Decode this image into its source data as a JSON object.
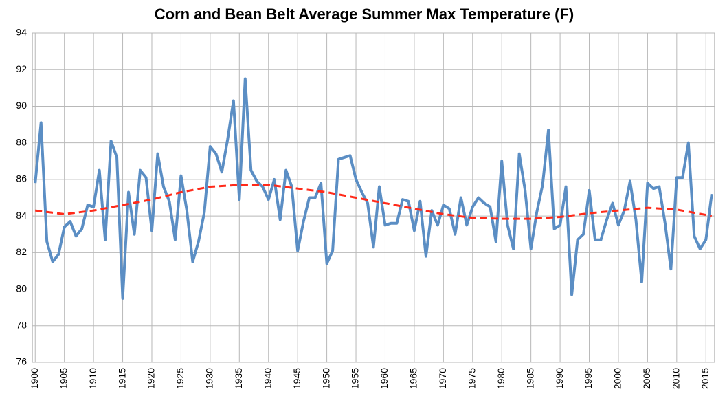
{
  "chart_data": {
    "type": "line",
    "title": "Corn and Bean Belt  Average Summer Max Temperature (F)",
    "x": [
      1900,
      1901,
      1902,
      1903,
      1904,
      1905,
      1906,
      1907,
      1908,
      1909,
      1910,
      1911,
      1912,
      1913,
      1914,
      1915,
      1916,
      1917,
      1918,
      1919,
      1920,
      1921,
      1922,
      1923,
      1924,
      1925,
      1926,
      1927,
      1928,
      1929,
      1930,
      1931,
      1932,
      1933,
      1934,
      1935,
      1936,
      1937,
      1938,
      1939,
      1940,
      1941,
      1942,
      1943,
      1944,
      1945,
      1946,
      1947,
      1948,
      1949,
      1950,
      1951,
      1952,
      1953,
      1954,
      1955,
      1956,
      1957,
      1958,
      1959,
      1960,
      1961,
      1962,
      1963,
      1964,
      1965,
      1966,
      1967,
      1968,
      1969,
      1970,
      1971,
      1972,
      1973,
      1974,
      1975,
      1976,
      1977,
      1978,
      1979,
      1980,
      1981,
      1982,
      1983,
      1984,
      1985,
      1986,
      1987,
      1988,
      1989,
      1990,
      1991,
      1992,
      1993,
      1994,
      1995,
      1996,
      1997,
      1998,
      1999,
      2000,
      2001,
      2002,
      2003,
      2004,
      2005,
      2006,
      2007,
      2008,
      2009,
      2010,
      2011,
      2012,
      2013,
      2014,
      2015,
      2016
    ],
    "series": [
      {
        "color": "#5b8ec4",
        "values": [
          85.8,
          89.1,
          82.6,
          81.5,
          81.9,
          83.4,
          83.7,
          82.9,
          83.3,
          84.6,
          84.5,
          86.5,
          82.7,
          88.1,
          87.2,
          79.5,
          85.3,
          83.0,
          86.5,
          86.1,
          83.2,
          87.4,
          85.6,
          84.8,
          82.7,
          86.2,
          84.3,
          81.5,
          82.6,
          84.2,
          87.8,
          87.4,
          86.4,
          88.2,
          90.3,
          84.9,
          91.5,
          86.5,
          85.9,
          85.6,
          84.9,
          86.0,
          83.8,
          86.5,
          85.6,
          82.1,
          83.7,
          85.0,
          85.0,
          85.8,
          81.4,
          82.1,
          87.1,
          87.2,
          87.3,
          86.0,
          85.3,
          84.7,
          82.3,
          85.6,
          83.5,
          83.6,
          83.6,
          84.9,
          84.8,
          83.2,
          84.8,
          81.8,
          84.3,
          83.5,
          84.6,
          84.4,
          83.0,
          85.0,
          83.5,
          84.5,
          85.0,
          84.7,
          84.5,
          82.6,
          87.0,
          83.5,
          82.2,
          87.4,
          85.4,
          82.2,
          84.2,
          85.7,
          88.7,
          83.3,
          83.5,
          85.6,
          79.7,
          82.7,
          83.0,
          85.4,
          82.7,
          82.7,
          83.8,
          84.7,
          83.5,
          84.3,
          85.9,
          83.8,
          80.4,
          85.8,
          85.5,
          85.6,
          83.6,
          81.1,
          86.1,
          86.1,
          88.0,
          82.9,
          82.2,
          82.7,
          85.2
        ]
      },
      {
        "color": "#ff2a1a",
        "dashed": true,
        "x": [
          1900,
          1905,
          1910,
          1915,
          1920,
          1925,
          1930,
          1935,
          1940,
          1945,
          1950,
          1955,
          1960,
          1965,
          1970,
          1975,
          1980,
          1985,
          1990,
          1995,
          2000,
          2005,
          2010,
          2016
        ],
        "values": [
          84.3,
          84.1,
          84.3,
          84.6,
          84.9,
          85.3,
          85.6,
          85.7,
          85.7,
          85.5,
          85.3,
          85.0,
          84.7,
          84.4,
          84.1,
          83.9,
          83.85,
          83.85,
          83.95,
          84.15,
          84.3,
          84.45,
          84.35,
          84.0
        ]
      }
    ],
    "xlim": [
      1899.5,
      2016.5
    ],
    "xticks": [
      1900,
      1905,
      1910,
      1915,
      1920,
      1925,
      1930,
      1935,
      1940,
      1945,
      1950,
      1955,
      1960,
      1965,
      1970,
      1975,
      1980,
      1985,
      1990,
      1995,
      2000,
      2005,
      2010,
      2015
    ],
    "ylim": [
      76,
      94
    ],
    "yticks": [
      76,
      78,
      80,
      82,
      84,
      86,
      88,
      90,
      92,
      94
    ],
    "grid": true
  }
}
